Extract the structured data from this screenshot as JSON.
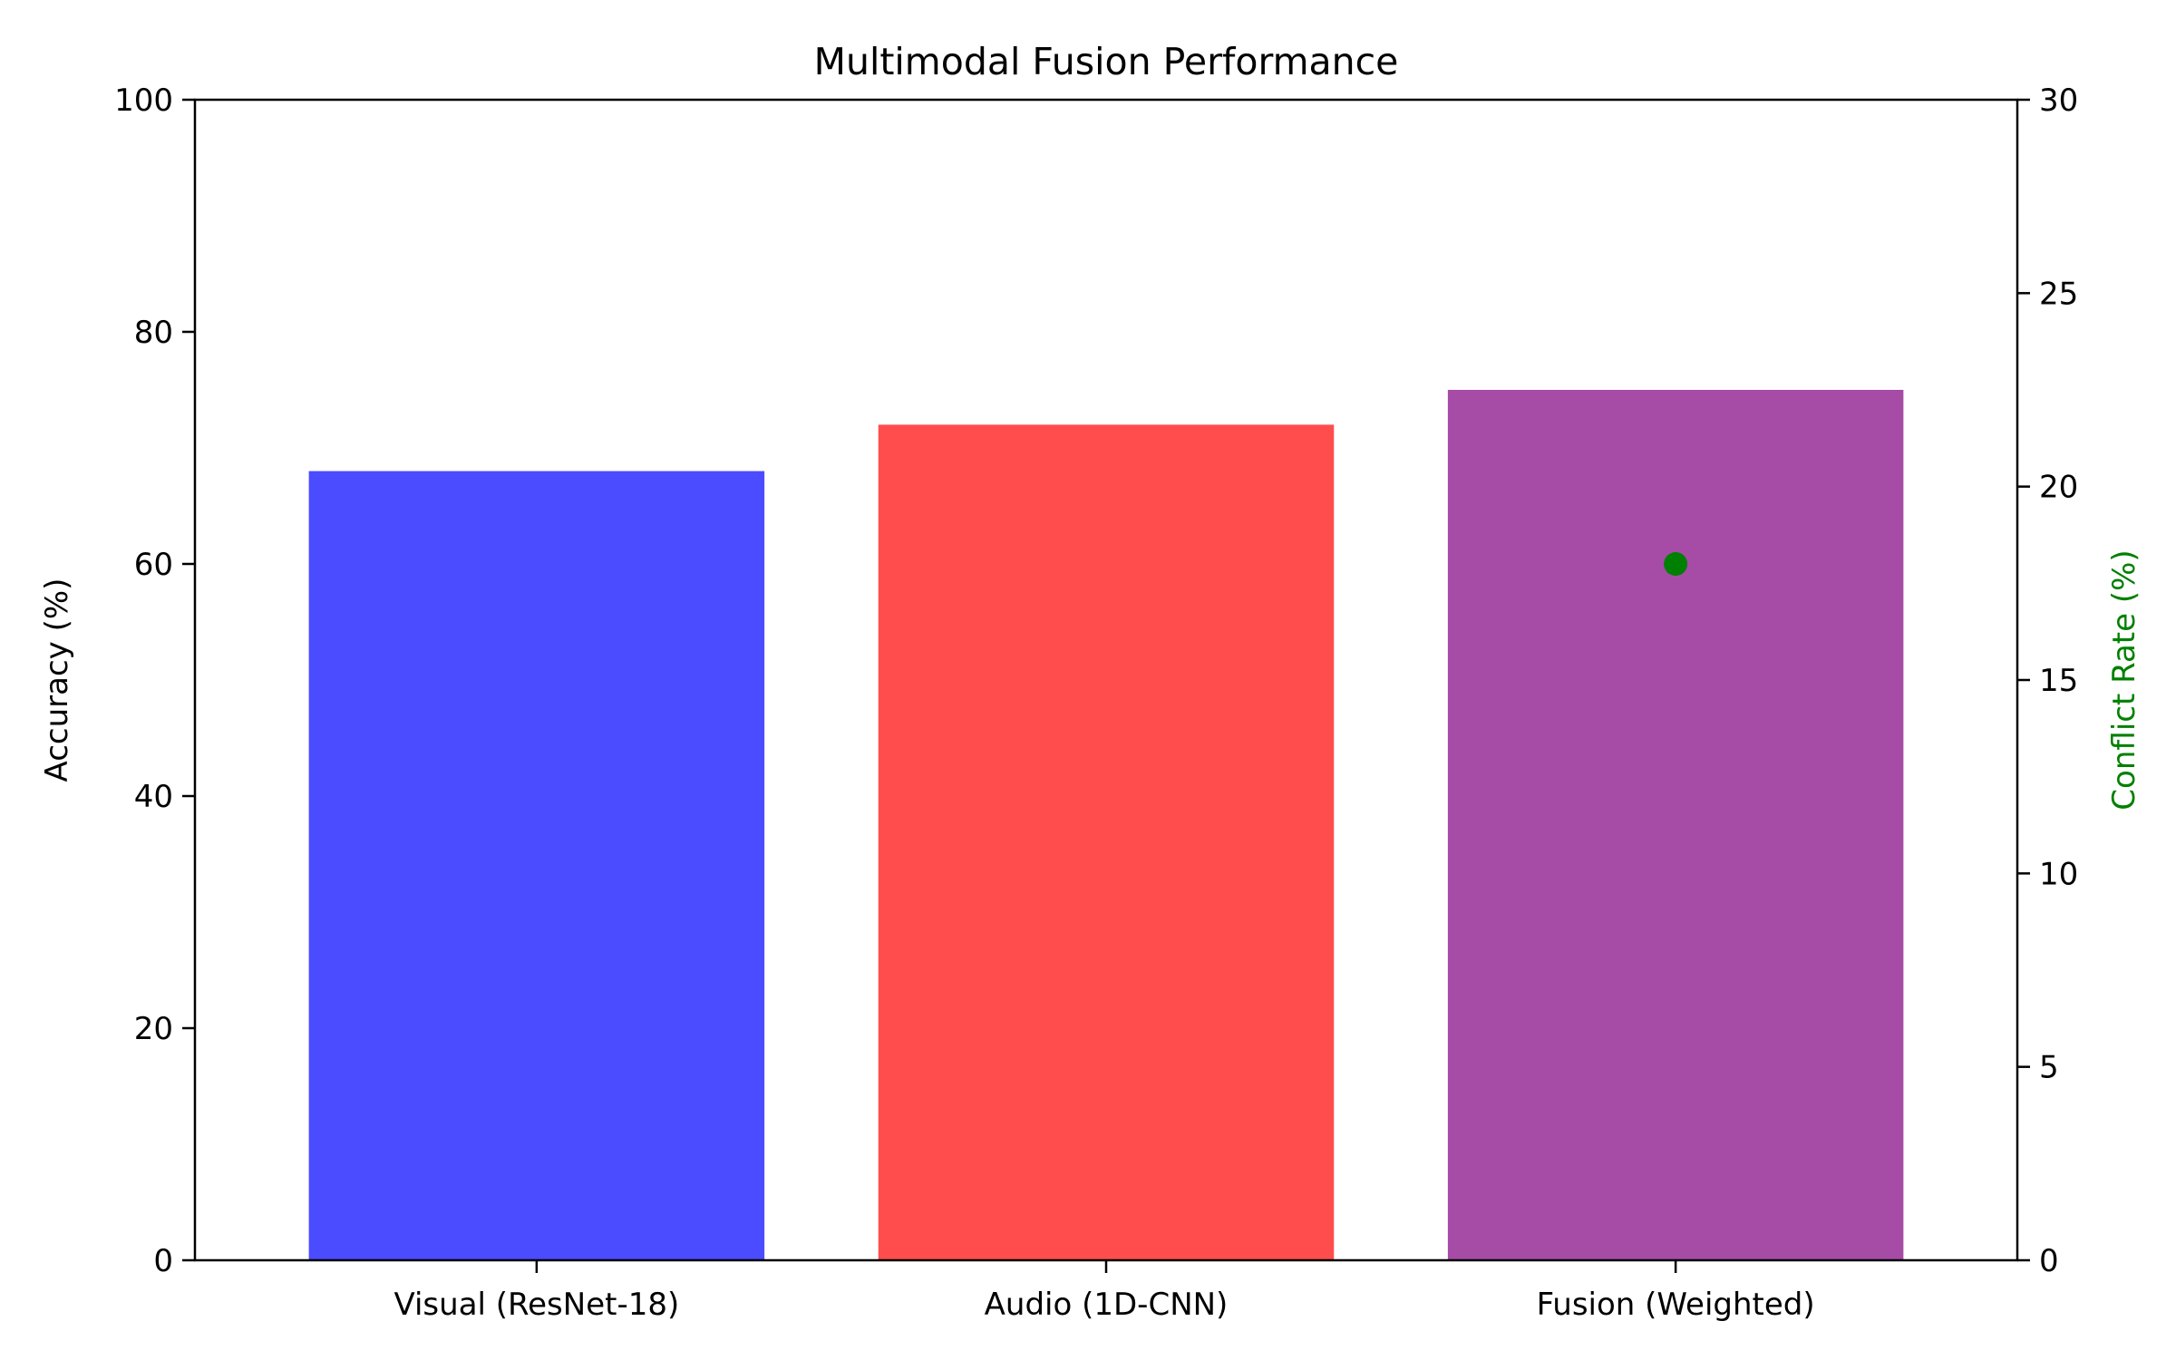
{
  "chart_data": {
    "type": "bar",
    "title": "Multimodal Fusion Performance",
    "categories": [
      "Visual (ResNet-18)",
      "Audio (1D-CNN)",
      "Fusion (Weighted)"
    ],
    "xlabel": "",
    "ylabel": "Accuracy (%)",
    "ylim": [
      0,
      100
    ],
    "yticks": [
      "0",
      "20",
      "40",
      "60",
      "80",
      "100"
    ],
    "ytick_values": [
      0,
      20,
      40,
      60,
      80,
      100
    ],
    "series": [
      {
        "values": [
          68,
          72,
          75
        ],
        "colors": [
          "#4b4bff",
          "#ff4d4d",
          "#a64ca6"
        ]
      }
    ],
    "secondary_axis": {
      "ylabel": "Conflict Rate (%)",
      "label_color": "#008000",
      "ylim": [
        0,
        30
      ],
      "yticks": [
        "0",
        "5",
        "10",
        "15",
        "20",
        "25",
        "30"
      ],
      "ytick_values": [
        0,
        5,
        10,
        15,
        20,
        25,
        30
      ],
      "points": [
        {
          "category_index": 2,
          "value": 18,
          "color": "#008000"
        }
      ]
    },
    "grid": false,
    "legend": "none"
  }
}
